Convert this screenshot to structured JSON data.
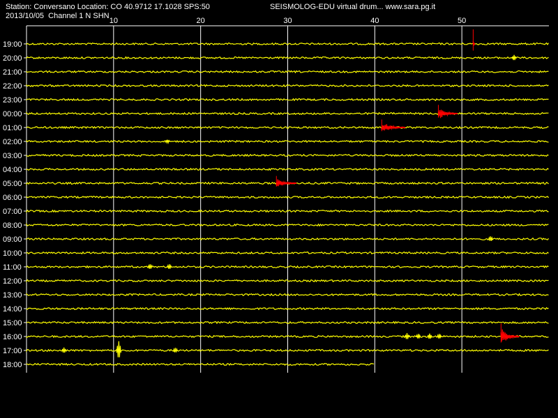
{
  "header": {
    "station_line": "Station: Conversano Location: CO 40.9712 17.1028 SPS:50",
    "date_line": "2013/10/05  Channel 1 N SHN",
    "title": "SEISMOLOG-EDU virtual drum... www.sara.pg.it"
  },
  "colors": {
    "background": "#000000",
    "trace": "#ffff00",
    "event": "#ff0000",
    "grid": "#ffffff",
    "text": "#ffffff"
  },
  "chart_data": {
    "type": "line",
    "title": "SEISMOLOG-EDU virtual drum... www.sara.pg.it",
    "xlabel": "",
    "ylabel": "",
    "xlim": [
      0,
      60
    ],
    "x_ticks": [
      "10",
      "20",
      "30",
      "40",
      "50"
    ],
    "x_tick_values": [
      10,
      20,
      30,
      40,
      50
    ],
    "grid": true,
    "rows": [
      {
        "label": "19:00"
      },
      {
        "label": "20:00"
      },
      {
        "label": "21:00"
      },
      {
        "label": "22:00"
      },
      {
        "label": "23:00"
      },
      {
        "label": "00:00"
      },
      {
        "label": "01:00"
      },
      {
        "label": "02:00"
      },
      {
        "label": "03:00"
      },
      {
        "label": "04:00"
      },
      {
        "label": "05:00"
      },
      {
        "label": "06:00"
      },
      {
        "label": "07:00"
      },
      {
        "label": "08:00"
      },
      {
        "label": "09:00"
      },
      {
        "label": "10:00"
      },
      {
        "label": "11:00"
      },
      {
        "label": "12:00"
      },
      {
        "label": "13:00"
      },
      {
        "label": "14:00"
      },
      {
        "label": "15:00"
      },
      {
        "label": "16:00"
      },
      {
        "label": "17:00"
      },
      {
        "label": "18:00"
      }
    ],
    "last_row_end_minute": 40,
    "events": [
      {
        "row": "19:00",
        "start": 51.3,
        "end": 51.5,
        "amp": 1.0,
        "color": "red"
      },
      {
        "row": "00:00",
        "start": 47.3,
        "end": 49.5,
        "amp": 0.6,
        "color": "red"
      },
      {
        "row": "01:00",
        "start": 40.8,
        "end": 43.5,
        "amp": 0.55,
        "color": "red"
      },
      {
        "row": "05:00",
        "start": 28.7,
        "end": 31.0,
        "amp": 0.5,
        "color": "red"
      },
      {
        "row": "16:00",
        "start": 54.5,
        "end": 56.6,
        "amp": 0.9,
        "color": "red"
      }
    ],
    "spikes": [
      {
        "row": "20:00",
        "at": 56.0,
        "amp": 0.35
      },
      {
        "row": "02:00",
        "at": 16.2,
        "amp": 0.2
      },
      {
        "row": "09:00",
        "at": 53.3,
        "amp": 0.3
      },
      {
        "row": "11:00",
        "at": 14.2,
        "amp": 0.3
      },
      {
        "row": "11:00",
        "at": 16.4,
        "amp": 0.3
      },
      {
        "row": "16:00",
        "at": 43.7,
        "amp": 0.4
      },
      {
        "row": "16:00",
        "at": 45.0,
        "amp": 0.3
      },
      {
        "row": "16:00",
        "at": 46.3,
        "amp": 0.35
      },
      {
        "row": "16:00",
        "at": 47.4,
        "amp": 0.3
      },
      {
        "row": "17:00",
        "at": 4.3,
        "amp": 0.35
      },
      {
        "row": "17:00",
        "at": 10.6,
        "amp": 1.1
      },
      {
        "row": "17:00",
        "at": 17.1,
        "amp": 0.3
      }
    ]
  }
}
